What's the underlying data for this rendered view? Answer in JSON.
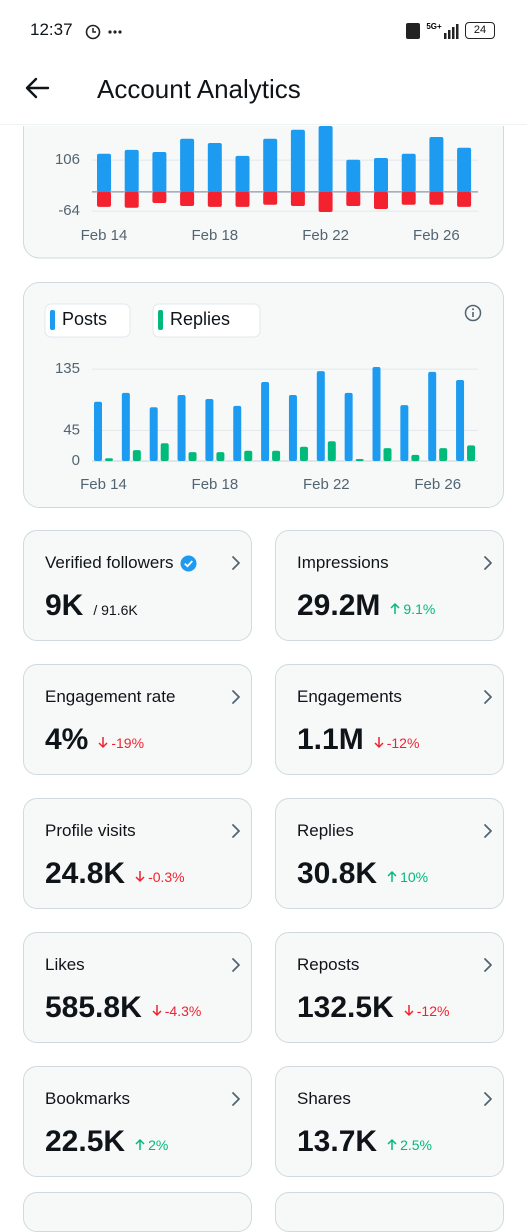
{
  "status_bar": {
    "time": "12:37",
    "network": "5G+",
    "battery": "24"
  },
  "header": {
    "title": "Account Analytics"
  },
  "chart_data": [
    {
      "type": "bar",
      "stacked": true,
      "categories": [
        "Feb 14",
        null,
        null,
        null,
        "Feb 18",
        null,
        null,
        null,
        "Feb 22",
        null,
        null,
        null,
        "Feb 26",
        null
      ],
      "series": [
        {
          "color": "#1d9bf0",
          "values": [
            127,
            140,
            133,
            177,
            163,
            120,
            177,
            207,
            230,
            107,
            113,
            127,
            183,
            147
          ]
        },
        {
          "color": "#f4212e",
          "values": [
            -50,
            -53,
            -37,
            -47,
            -50,
            -50,
            -43,
            -47,
            -67,
            -47,
            -57,
            -43,
            -43,
            -50
          ]
        }
      ],
      "ylim": [
        -77,
        223
      ],
      "yticks": [
        -64,
        106
      ],
      "grid": true
    },
    {
      "type": "bar",
      "stacked": false,
      "categories": [
        "Feb 14",
        null,
        null,
        null,
        "Feb 18",
        null,
        null,
        null,
        "Feb 22",
        null,
        null,
        null,
        "Feb 26",
        null
      ],
      "series": [
        {
          "name": "Posts",
          "color": "#1d9bf0",
          "values": [
            87,
            100,
            79,
            97,
            91,
            81,
            116,
            97,
            132,
            100,
            138,
            82,
            131,
            119
          ]
        },
        {
          "name": "Replies",
          "color": "#00ba7c",
          "values": [
            4,
            16,
            26,
            13,
            13,
            15,
            15,
            21,
            29,
            3,
            19,
            9,
            19,
            23
          ]
        }
      ],
      "ylim": [
        0,
        140
      ],
      "yticks": [
        0,
        45,
        135
      ],
      "grid": true,
      "legend": "top-left"
    }
  ],
  "metrics": [
    {
      "label": "Verified followers",
      "verified": true,
      "value": "9K",
      "total": "/ 91.6K"
    },
    {
      "label": "Impressions",
      "value": "29.2M",
      "change": "9.1%",
      "direction": "up"
    },
    {
      "label": "Engagement rate",
      "value": "4%",
      "change": "-19%",
      "direction": "down"
    },
    {
      "label": "Engagements",
      "value": "1.1M",
      "change": "-12%",
      "direction": "down"
    },
    {
      "label": "Profile visits",
      "value": "24.8K",
      "change": "-0.3%",
      "direction": "down"
    },
    {
      "label": "Replies",
      "value": "30.8K",
      "change": "10%",
      "direction": "up"
    },
    {
      "label": "Likes",
      "value": "585.8K",
      "change": "-4.3%",
      "direction": "down"
    },
    {
      "label": "Reposts",
      "value": "132.5K",
      "change": "-12%",
      "direction": "down"
    },
    {
      "label": "Bookmarks",
      "value": "22.5K",
      "change": "2%",
      "direction": "up"
    },
    {
      "label": "Shares",
      "value": "13.7K",
      "change": "2.5%",
      "direction": "up"
    }
  ]
}
